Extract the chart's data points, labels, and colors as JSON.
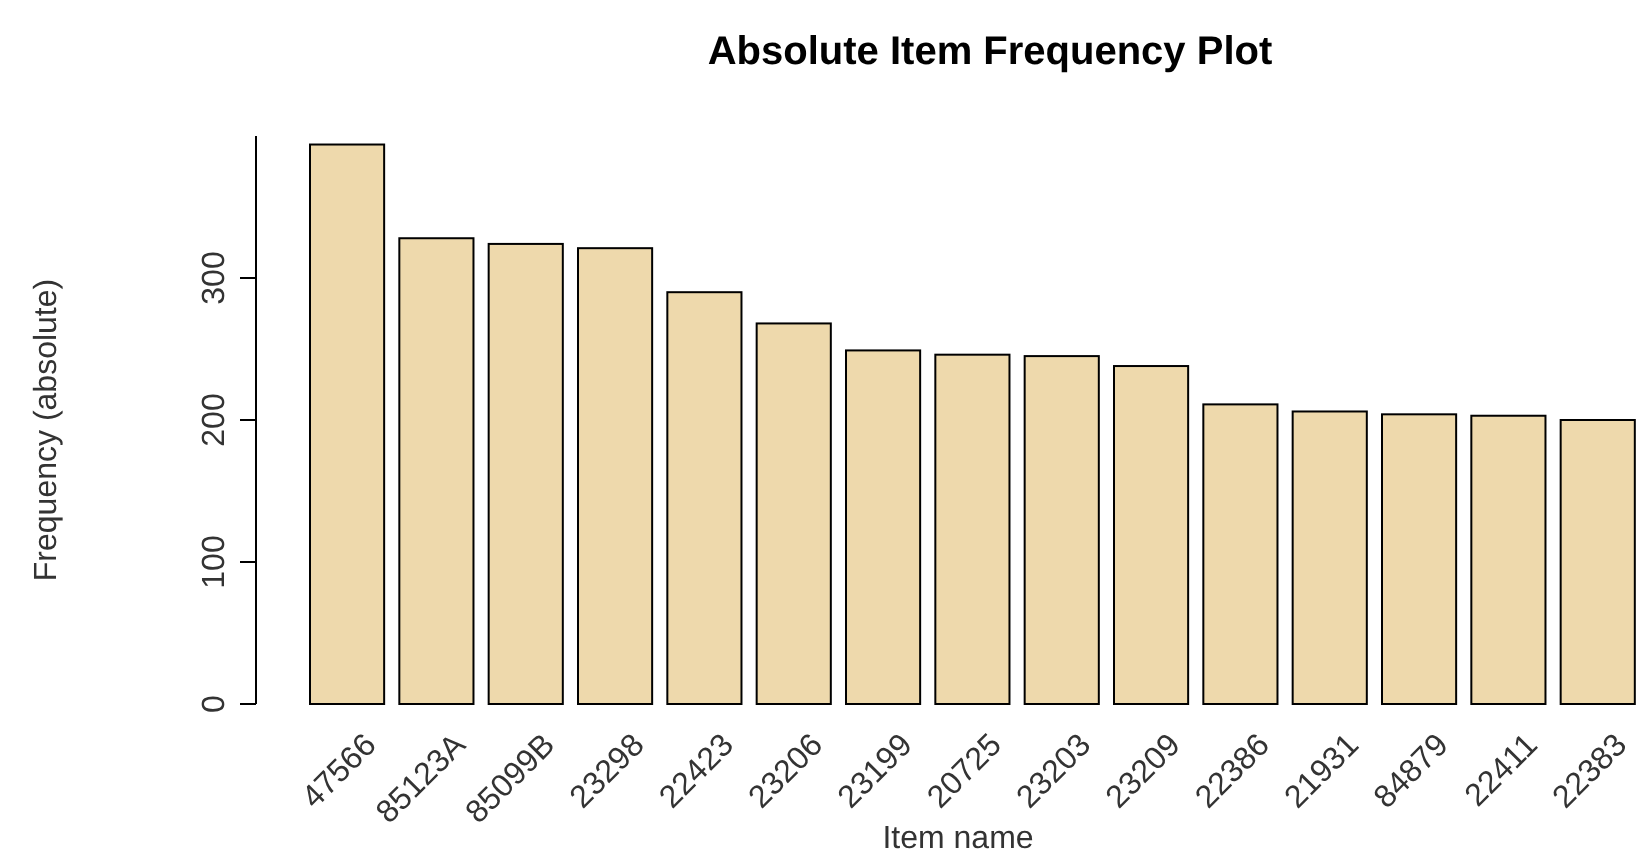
{
  "chart_data": {
    "type": "bar",
    "title": "Absolute Item Frequency Plot",
    "xlabel": "Item name",
    "ylabel": "Frequency (absolute)",
    "categories": [
      "47566",
      "85123A",
      "85099B",
      "23298",
      "22423",
      "23206",
      "23199",
      "20725",
      "23203",
      "23209",
      "22386",
      "21931",
      "84879",
      "22411",
      "22383"
    ],
    "values": [
      394,
      328,
      324,
      321,
      290,
      268,
      249,
      246,
      245,
      238,
      211,
      206,
      204,
      203,
      200
    ],
    "color": "#eed9ac",
    "ylim": [
      0,
      400
    ],
    "yticks": [
      0,
      100,
      200,
      300
    ],
    "grid": false
  }
}
